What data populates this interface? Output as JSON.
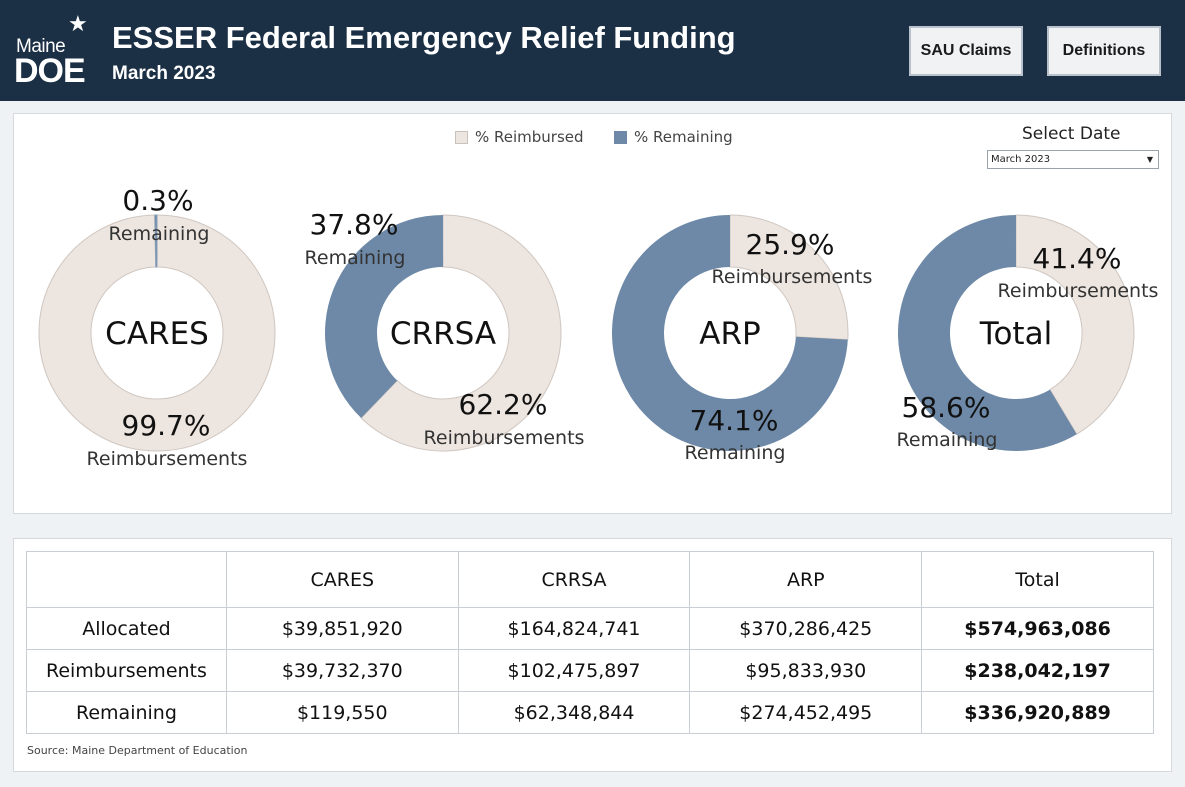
{
  "header": {
    "logo_top": "Maine",
    "logo_bottom": "DOE",
    "title": "ESSER Federal Emergency Relief Funding",
    "subtitle": "March 2023",
    "buttons": {
      "sau_claims": "SAU Claims",
      "definitions": "Definitions"
    }
  },
  "legend": {
    "reimbursed": "% Reimbursed",
    "remaining": "% Remaining"
  },
  "filter": {
    "label": "Select Date",
    "value": "March 2023"
  },
  "colors": {
    "reimbursed": "#ede5df",
    "remaining": "#6d89a7",
    "header": "#1b2f45"
  },
  "chart_data": [
    {
      "type": "pie",
      "title": "CARES",
      "categories": [
        "Remaining",
        "Reimbursements"
      ],
      "values": [
        0.3,
        99.7
      ],
      "labels": [
        {
          "pct": "0.3%",
          "text": "Remaining"
        },
        {
          "pct": "99.7%",
          "text": "Reimbursements"
        }
      ]
    },
    {
      "type": "pie",
      "title": "CRRSA",
      "categories": [
        "Remaining",
        "Reimbursements"
      ],
      "values": [
        37.8,
        62.2
      ],
      "labels": [
        {
          "pct": "37.8%",
          "text": "Remaining"
        },
        {
          "pct": "62.2%",
          "text": "Reimbursements"
        }
      ]
    },
    {
      "type": "pie",
      "title": "ARP",
      "categories": [
        "Remaining",
        "Reimbursements"
      ],
      "values": [
        74.1,
        25.9
      ],
      "labels": [
        {
          "pct": "74.1%",
          "text": "Remaining"
        },
        {
          "pct": "25.9%",
          "text": "Reimbursements"
        }
      ]
    },
    {
      "type": "pie",
      "title": "Total",
      "categories": [
        "Remaining",
        "Reimbursements"
      ],
      "values": [
        58.6,
        41.4
      ],
      "labels": [
        {
          "pct": "58.6%",
          "text": "Remaining"
        },
        {
          "pct": "41.4%",
          "text": "Reimbursements"
        }
      ]
    },
    {
      "type": "table",
      "columns": [
        "",
        "CARES",
        "CRRSA",
        "ARP",
        "Total"
      ],
      "rows": [
        [
          "Allocated",
          "$39,851,920",
          "$164,824,741",
          "$370,286,425",
          "$574,963,086"
        ],
        [
          "Reimbursements",
          "$39,732,370",
          "$102,475,897",
          "$95,833,930",
          "$238,042,197"
        ],
        [
          "Remaining",
          "$119,550",
          "$62,348,844",
          "$274,452,495",
          "$336,920,889"
        ]
      ]
    }
  ],
  "source": "Source: Maine Department of Education"
}
